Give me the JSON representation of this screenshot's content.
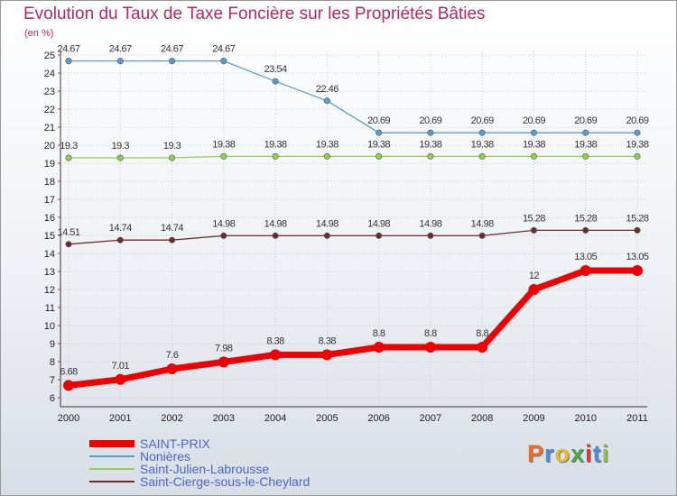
{
  "chart_data": {
    "type": "line",
    "title": "Evolution du Taux de Taxe Foncière sur les Propriétés Bâties",
    "ylabel": "(en %)",
    "xlabel": "",
    "categories": [
      "2000",
      "2001",
      "2002",
      "2003",
      "2004",
      "2005",
      "2006",
      "2007",
      "2008",
      "2009",
      "2010",
      "2011"
    ],
    "ylim": [
      6,
      25
    ],
    "yticks": [
      6,
      7,
      8,
      9,
      10,
      11,
      12,
      13,
      14,
      15,
      16,
      17,
      18,
      19,
      20,
      21,
      22,
      23,
      24,
      25
    ],
    "grid": true,
    "legend_position": "bottom-left",
    "series": [
      {
        "name": "Nonières",
        "color": "#5b9bd5",
        "values": [
          24.67,
          24.67,
          24.67,
          24.67,
          23.54,
          22.46,
          20.69,
          20.69,
          20.69,
          20.69,
          20.69,
          20.69
        ],
        "labels": [
          "24.67",
          "24.67",
          "24.67",
          "24.67",
          "23.54",
          "22.46",
          "20.69",
          "20.69",
          "20.69",
          "20.69",
          "20.69",
          "20.69"
        ]
      },
      {
        "name": "Saint-Julien-Labrousse",
        "color": "#8fd14f",
        "values": [
          19.3,
          19.3,
          19.3,
          19.38,
          19.38,
          19.38,
          19.38,
          19.38,
          19.38,
          19.38,
          19.38,
          19.38
        ],
        "labels": [
          "19.3",
          "19.3",
          "19.3",
          "19.38",
          "19.38",
          "19.38",
          "19.38",
          "19.38",
          "19.38",
          "19.38",
          "19.38",
          "19.38"
        ]
      },
      {
        "name": "Saint-Cierge-sous-le-Cheylard",
        "color": "#6b2c2c",
        "values": [
          14.51,
          14.74,
          14.74,
          14.98,
          14.98,
          14.98,
          14.98,
          14.98,
          14.98,
          15.28,
          15.28,
          15.28
        ],
        "labels": [
          "14.51",
          "14.74",
          "14.74",
          "14.98",
          "14.98",
          "14.98",
          "14.98",
          "14.98",
          "14.98",
          "15.28",
          "15.28",
          "15.28"
        ]
      },
      {
        "name": "SAINT-PRIX",
        "color": "#ee0000",
        "highlight": true,
        "values": [
          6.68,
          7.01,
          7.6,
          7.98,
          8.38,
          8.38,
          8.8,
          8.8,
          8.8,
          12,
          13.05,
          13.05
        ],
        "labels": [
          "6.68",
          "7.01",
          "7.6",
          "7.98",
          "8.38",
          "8.38",
          "8.8",
          "8.8",
          "8.8",
          "12",
          "13.05",
          "13.05"
        ]
      }
    ],
    "legend_order": [
      "SAINT-PRIX",
      "Nonières",
      "Saint-Julien-Labrousse",
      "Saint-Cierge-sous-le-Cheylard"
    ]
  },
  "brand": {
    "text": "Proxiti",
    "colors": [
      "#e8702a",
      "#4a8fd8",
      "#e8b82a",
      "#4aa84a",
      "#d83a3a",
      "#4a8fd8",
      "#8fc63a"
    ]
  }
}
